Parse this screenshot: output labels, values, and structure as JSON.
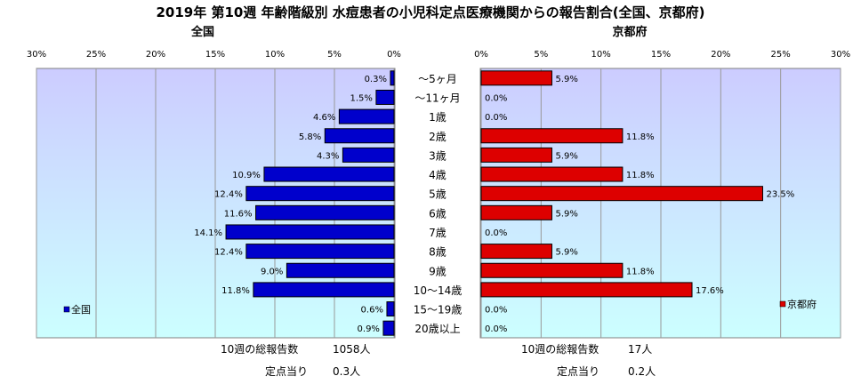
{
  "title": "2019年 第10週 年齢階級別 水痘患者の小児科定点医療機関からの報告割合(全国、京都府)",
  "categories": [
    "～5ヶ月",
    "～11ヶ月",
    "1歳",
    "2歳",
    "3歳",
    "4歳",
    "5歳",
    "6歳",
    "7歳",
    "8歳",
    "9歳",
    "10～14歳",
    "15～19歳",
    "20歳以上"
  ],
  "chart_data": [
    {
      "type": "bar",
      "title": "全国",
      "orientation": "horizontal",
      "direction": "right-to-left",
      "series": [
        {
          "name": "全国",
          "color": "#0000cc",
          "values": [
            0.3,
            1.5,
            4.6,
            5.8,
            4.3,
            10.9,
            12.4,
            11.6,
            14.1,
            12.4,
            9.0,
            11.8,
            0.6,
            0.9
          ]
        }
      ],
      "value_labels": [
        "0.3%",
        "1.5%",
        "4.6%",
        "5.8%",
        "4.3%",
        "10.9%",
        "12.4%",
        "11.6%",
        "14.1%",
        "12.4%",
        "9.0%",
        "11.8%",
        "0.6%",
        "0.9%"
      ],
      "xlim": [
        0,
        30
      ],
      "ticks": [
        "30%",
        "25%",
        "20%",
        "15%",
        "10%",
        "5%",
        "0%"
      ],
      "grid": true,
      "legend": "left"
    },
    {
      "type": "bar",
      "title": "京都府",
      "orientation": "horizontal",
      "direction": "left-to-right",
      "series": [
        {
          "name": "京都府",
          "color": "#dd0000",
          "values": [
            5.9,
            0.0,
            0.0,
            11.8,
            5.9,
            11.8,
            23.5,
            5.9,
            0.0,
            5.9,
            11.8,
            17.6,
            0.0,
            0.0
          ]
        }
      ],
      "value_labels": [
        "5.9%",
        "0.0%",
        "0.0%",
        "11.8%",
        "5.9%",
        "11.8%",
        "23.5%",
        "5.9%",
        "0.0%",
        "5.9%",
        "11.8%",
        "17.6%",
        "0.0%",
        "0.0%"
      ],
      "xlim": [
        0,
        30
      ],
      "ticks": [
        "0%",
        "5%",
        "10%",
        "15%",
        "20%",
        "25%",
        "30%"
      ],
      "grid": true,
      "legend": "right"
    }
  ],
  "footer": {
    "national_total_label": "10週の総報告数",
    "national_total_value": "1058人",
    "national_per_label": "定点当り",
    "national_per_value": "0.3人",
    "kyoto_total_label": "10週の総報告数",
    "kyoto_total_value": "17人",
    "kyoto_per_label": "定点当り",
    "kyoto_per_value": "0.2人"
  },
  "colors": {
    "national": "#0000cc",
    "kyoto": "#dd0000",
    "panel_top": "#ccccff",
    "panel_bottom": "#ccffff",
    "grid": "#999999"
  }
}
